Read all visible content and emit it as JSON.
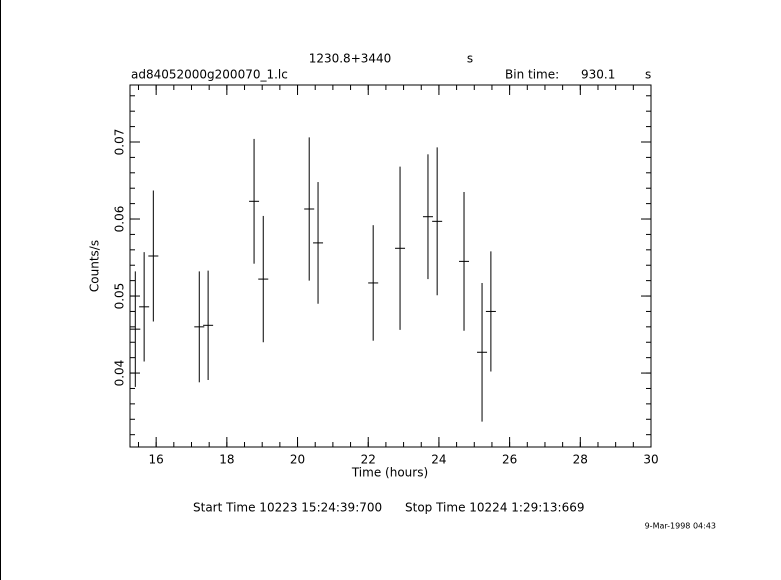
{
  "chart_data": {
    "type": "errorbar",
    "title": "1230.8+3440",
    "title_unit": "s",
    "file_name": "ad84052000g200070_1.lc",
    "bin_time_label": "Bin time:",
    "bin_time": "930.1",
    "bin_time_unit": "s",
    "x_label": "Time (hours)",
    "y_label": "Counts/s",
    "start_time": "Start Time 10223 15:24:39:700",
    "stop_time": "Stop Time 10224  1:29:13:669",
    "date_stamp": "9-Mar-1998 04:43",
    "color": "#000000",
    "xlim": [
      15.26,
      30
    ],
    "xticks": [
      16,
      18,
      20,
      22,
      24,
      26,
      28,
      30
    ],
    "ylim": [
      0.0304,
      0.0774
    ],
    "yticks": [
      0.04,
      0.05,
      0.06,
      0.07
    ],
    "x": [
      15.41,
      15.66,
      15.92,
      17.22,
      17.47,
      18.77,
      19.03,
      20.33,
      20.58,
      22.14,
      22.9,
      23.69,
      23.95,
      24.71,
      25.22,
      25.47
    ],
    "values": [
      0.0457,
      0.0486,
      0.0552,
      0.046,
      0.0462,
      0.0623,
      0.0522,
      0.0613,
      0.0569,
      0.0517,
      0.0562,
      0.0603,
      0.0597,
      0.0545,
      0.0427,
      0.048
    ],
    "errors": [
      0.0075,
      0.0071,
      0.0085,
      0.0072,
      0.0071,
      0.0081,
      0.0082,
      0.0093,
      0.0079,
      0.0075,
      0.0106,
      0.0081,
      0.0096,
      0.009,
      0.009,
      0.0078
    ]
  }
}
